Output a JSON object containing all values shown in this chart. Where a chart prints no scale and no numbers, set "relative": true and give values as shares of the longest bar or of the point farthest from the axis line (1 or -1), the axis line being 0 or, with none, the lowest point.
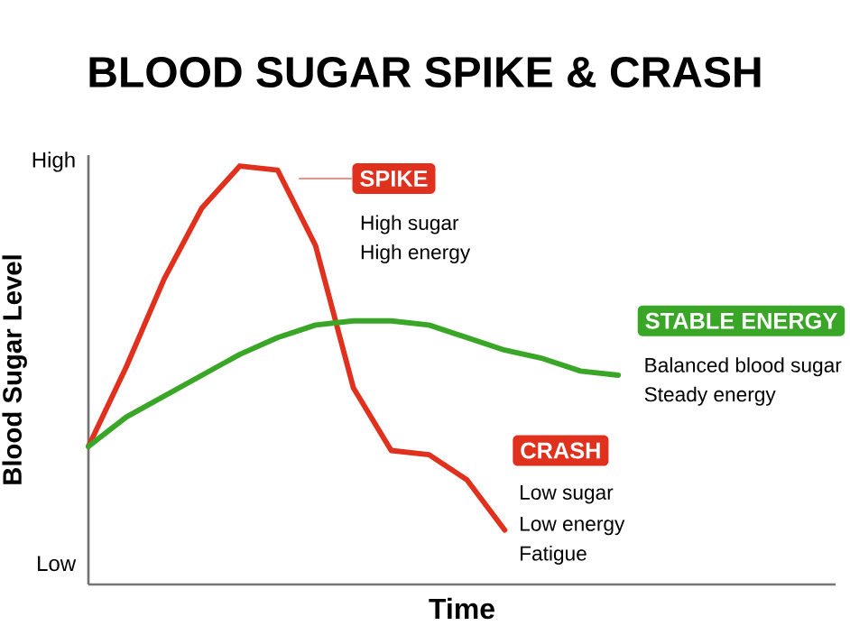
{
  "chart_data": {
    "type": "line",
    "title": "BLOOD SUGAR SPIKE & CRASH",
    "xlabel": "Time",
    "ylabel": "Blood Sugar Level",
    "relative": true,
    "categories": [
      null,
      null,
      null,
      null,
      null,
      null,
      null,
      null,
      null,
      null,
      null,
      null,
      null,
      null,
      null
    ],
    "series": [
      {
        "color": "#e0301e",
        "values": [
          0.33,
          0.52,
          0.73,
          0.9,
          1.0,
          0.99,
          0.81,
          0.47,
          0.32,
          0.31,
          0.25,
          0.13,
          null,
          null,
          null
        ]
      },
      {
        "color": "#3aa627",
        "values": [
          0.33,
          0.4,
          0.45,
          0.5,
          0.55,
          0.59,
          0.62,
          0.63,
          0.63,
          0.62,
          0.59,
          0.56,
          0.54,
          0.51,
          0.5
        ]
      }
    ],
    "annotations": [
      "SPIKE",
      "High sugar",
      "High energy",
      "CRASH",
      "Low sugar",
      "Low energy",
      "Fatigue",
      "STABLE ENERGY",
      "Balanced blood sugar",
      "Steady energy",
      "High",
      "Low"
    ]
  }
}
